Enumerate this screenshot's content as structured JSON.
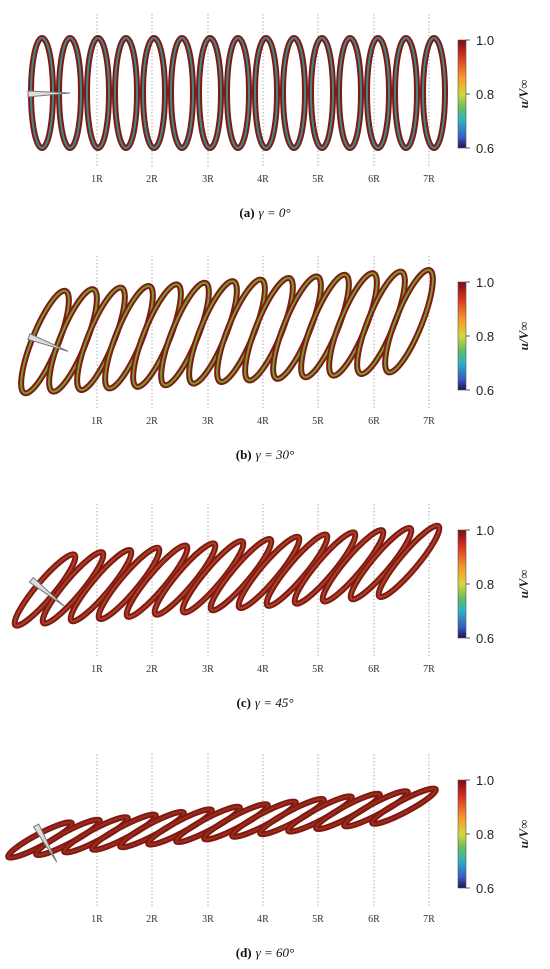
{
  "panels": [
    {
      "label": "(a)",
      "caption": "γ = 0°",
      "x_ticks": [
        "1R",
        "2R",
        "3R",
        "4R",
        "5R",
        "6R",
        "7R"
      ],
      "colorbar": {
        "label": "u/V∞",
        "ticks": [
          "1.0",
          "0.8",
          "0.6"
        ]
      }
    },
    {
      "label": "(b)",
      "caption": "γ = 30°",
      "x_ticks": [
        "1R",
        "2R",
        "3R",
        "4R",
        "5R",
        "6R",
        "7R"
      ],
      "colorbar": {
        "label": "u/V∞",
        "ticks": [
          "1.0",
          "0.8",
          "0.6"
        ]
      }
    },
    {
      "label": "(c)",
      "caption": "γ = 45°",
      "x_ticks": [
        "1R",
        "2R",
        "3R",
        "4R",
        "5R",
        "6R",
        "7R"
      ],
      "colorbar": {
        "label": "u/V∞",
        "ticks": [
          "1.0",
          "0.8",
          "0.6"
        ]
      }
    },
    {
      "label": "(d)",
      "caption": "γ = 60°",
      "x_ticks": [
        "1R",
        "2R",
        "3R",
        "4R",
        "5R",
        "6R",
        "7R"
      ],
      "colorbar": {
        "label": "u/V∞",
        "ticks": [
          "1.0",
          "0.8",
          "0.6"
        ]
      }
    }
  ]
}
